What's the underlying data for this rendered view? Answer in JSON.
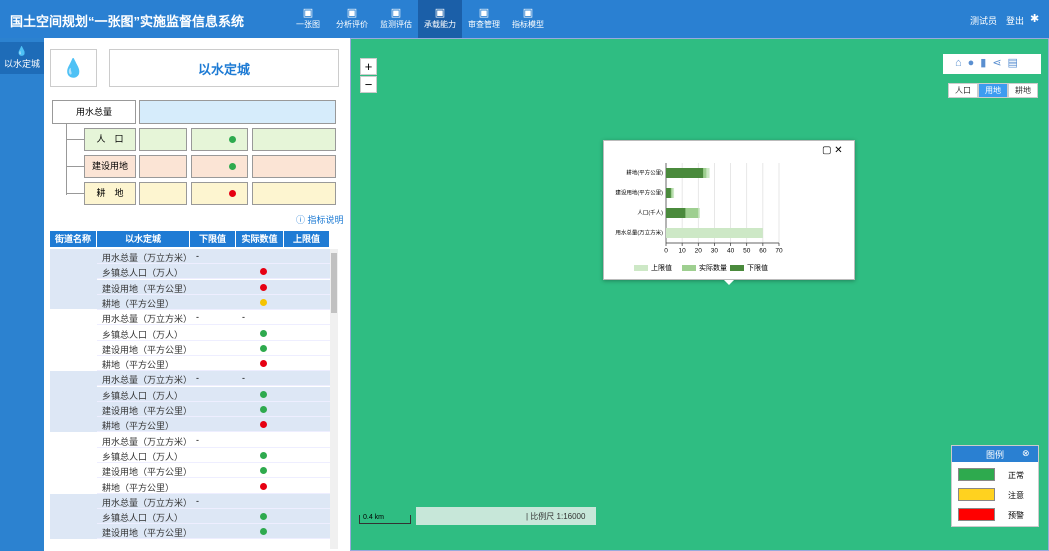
{
  "header": {
    "title": "国土空间规划“一张图”实施监督信息系统",
    "nav": [
      "一张图",
      "分析评价",
      "监测评估",
      "承载能力",
      "审查管理",
      "指标模型"
    ],
    "active_nav": 3,
    "user": "测试员",
    "logout": "登出"
  },
  "sidebar": {
    "item": "以水定城"
  },
  "panel": {
    "title": "以水定城",
    "tree": {
      "root": "用水总量",
      "children": [
        {
          "label": "人　口",
          "status": "#2eaa4e",
          "bg": "#e6f5d8"
        },
        {
          "label": "建设用地",
          "status": "#2eaa4e",
          "bg": "#fbe4d5"
        },
        {
          "label": "耕　地",
          "status": "#e60012",
          "bg": "#fdf5d0"
        }
      ]
    },
    "help": "指标说明"
  },
  "table": {
    "headers": [
      "街道名称",
      "以水定城",
      "下限值",
      "实际数值",
      "上限值"
    ],
    "groups": [
      {
        "rows": [
          {
            "indicator": "用水总量（万立方米）",
            "lower": "-"
          },
          {
            "indicator": "乡镇总人口（万人）",
            "status": "#e60012"
          },
          {
            "indicator": "建设用地（平方公里）",
            "status": "#e60012"
          },
          {
            "indicator": "耕地（平方公里）",
            "status": "#f5c400"
          }
        ]
      },
      {
        "rows": [
          {
            "indicator": "用水总量（万立方米）",
            "lower": "-",
            "actual": "-"
          },
          {
            "indicator": "乡镇总人口（万人）",
            "status": "#2eaa4e"
          },
          {
            "indicator": "建设用地（平方公里）",
            "status": "#2eaa4e"
          },
          {
            "indicator": "耕地（平方公里）",
            "status": "#e60012"
          }
        ]
      },
      {
        "rows": [
          {
            "indicator": "用水总量（万立方米）",
            "lower": "-",
            "actual": "-"
          },
          {
            "indicator": "乡镇总人口（万人）",
            "status": "#2eaa4e"
          },
          {
            "indicator": "建设用地（平方公里）",
            "status": "#2eaa4e"
          },
          {
            "indicator": "耕地（平方公里）",
            "status": "#e60012"
          }
        ]
      },
      {
        "rows": [
          {
            "indicator": "用水总量（万立方米）",
            "lower": "-"
          },
          {
            "indicator": "乡镇总人口（万人）",
            "status": "#2eaa4e"
          },
          {
            "indicator": "建设用地（平方公里）",
            "status": "#2eaa4e"
          },
          {
            "indicator": "耕地（平方公里）",
            "status": "#e60012"
          }
        ]
      },
      {
        "rows": [
          {
            "indicator": "用水总量（万立方米）",
            "lower": "-"
          },
          {
            "indicator": "乡镇总人口（万人）",
            "status": "#2eaa4e"
          },
          {
            "indicator": "建设用地（平方公里）",
            "status": "#2eaa4e"
          }
        ]
      }
    ]
  },
  "map": {
    "zoom_in": "+",
    "zoom_out": "−",
    "layers": [
      "人口",
      "用地",
      "耕地"
    ],
    "active_layer": 1,
    "scale_bar": "0.4 km",
    "scale_text": "| 比例尺 1:16000",
    "legend": {
      "title": "图例",
      "items": [
        {
          "label": "正常",
          "color": "#2eaa4e"
        },
        {
          "label": "注意",
          "color": "#ffd21f"
        },
        {
          "label": "预警",
          "color": "#ff0000"
        }
      ]
    }
  },
  "chart_data": {
    "type": "bar",
    "orientation": "horizontal",
    "categories": [
      "耕地(平方公里)",
      "建设用地(平方公里)",
      "人口(千人)",
      "用水总量(万立方米)"
    ],
    "series": [
      {
        "name": "上限值",
        "color": "#cde8c6",
        "values": [
          27,
          5,
          21,
          60
        ]
      },
      {
        "name": "实际数量",
        "color": "#9ecf90",
        "values": [
          25,
          4,
          20,
          0
        ]
      },
      {
        "name": "下限值",
        "color": "#4a8a3c",
        "values": [
          23,
          3,
          12,
          0
        ]
      }
    ],
    "xlim": [
      0,
      70
    ],
    "xticks": [
      0,
      10,
      20,
      30,
      40,
      50,
      60,
      70
    ],
    "grid": true
  }
}
